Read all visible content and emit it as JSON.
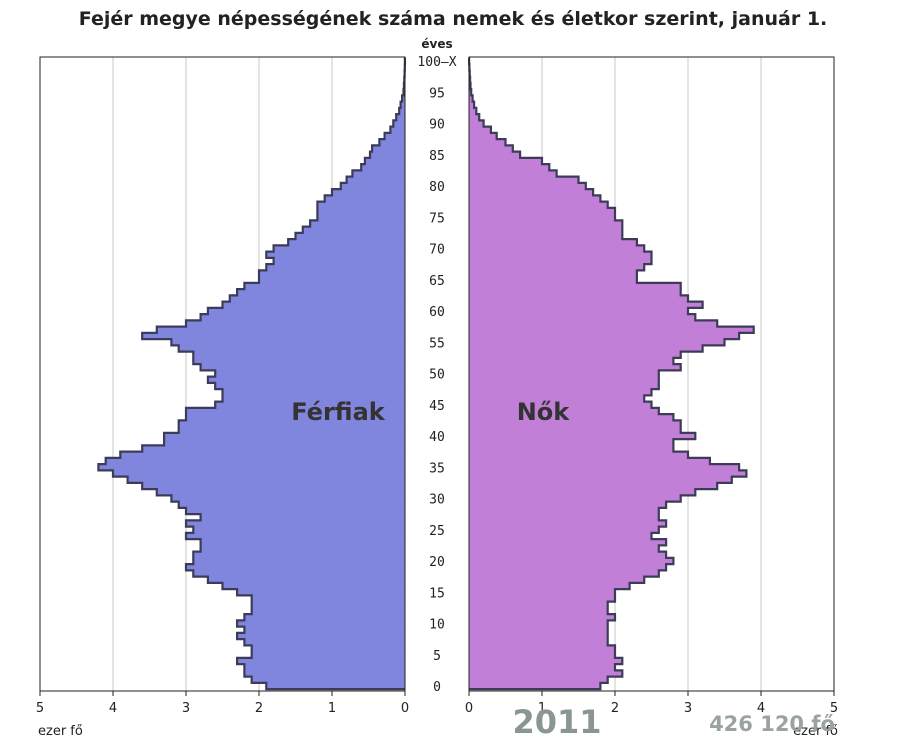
{
  "chart_data": {
    "type": "population-pyramid",
    "title": "Fejér megye népességének száma nemek és életkor szerint, január 1.",
    "age_axis_label": "éves",
    "age_ticks": [
      "0",
      "5",
      "10",
      "15",
      "20",
      "25",
      "30",
      "35",
      "40",
      "45",
      "50",
      "55",
      "60",
      "65",
      "70",
      "75",
      "80",
      "85",
      "90",
      "95",
      "100–X"
    ],
    "x_ticks_left": [
      "5",
      "4",
      "3",
      "2",
      "1",
      "0"
    ],
    "x_ticks_right": [
      "0",
      "1",
      "2",
      "3",
      "4",
      "5"
    ],
    "x_unit_left": "ezer fő",
    "x_unit_right": "ezer fő",
    "xlim": [
      0,
      5
    ],
    "ages": [
      0,
      1,
      2,
      3,
      4,
      5,
      6,
      7,
      8,
      9,
      10,
      11,
      12,
      13,
      14,
      15,
      16,
      17,
      18,
      19,
      20,
      21,
      22,
      23,
      24,
      25,
      26,
      27,
      28,
      29,
      30,
      31,
      32,
      33,
      34,
      35,
      36,
      37,
      38,
      39,
      40,
      41,
      42,
      43,
      44,
      45,
      46,
      47,
      48,
      49,
      50,
      51,
      52,
      53,
      54,
      55,
      56,
      57,
      58,
      59,
      60,
      61,
      62,
      63,
      64,
      65,
      66,
      67,
      68,
      69,
      70,
      71,
      72,
      73,
      74,
      75,
      76,
      77,
      78,
      79,
      80,
      81,
      82,
      83,
      84,
      85,
      86,
      87,
      88,
      89,
      90,
      91,
      92,
      93,
      94,
      95,
      96,
      97,
      98,
      99,
      100
    ],
    "series": [
      {
        "name": "Férfiak",
        "color": "#8085dd",
        "values": [
          1.9,
          2.1,
          2.2,
          2.2,
          2.3,
          2.1,
          2.1,
          2.2,
          2.3,
          2.2,
          2.3,
          2.2,
          2.1,
          2.1,
          2.1,
          2.3,
          2.5,
          2.7,
          2.9,
          3.0,
          2.9,
          2.9,
          2.8,
          2.8,
          3.0,
          2.9,
          3.0,
          2.8,
          3.0,
          3.1,
          3.2,
          3.4,
          3.6,
          3.8,
          4.0,
          4.2,
          4.1,
          3.9,
          3.6,
          3.3,
          3.3,
          3.1,
          3.1,
          3.0,
          3.0,
          2.6,
          2.5,
          2.5,
          2.6,
          2.7,
          2.6,
          2.8,
          2.9,
          2.9,
          3.1,
          3.2,
          3.6,
          3.4,
          3.0,
          2.8,
          2.7,
          2.5,
          2.4,
          2.3,
          2.2,
          2.0,
          2.0,
          1.9,
          1.8,
          1.9,
          1.8,
          1.6,
          1.5,
          1.4,
          1.3,
          1.2,
          1.2,
          1.2,
          1.1,
          1.0,
          0.88,
          0.8,
          0.72,
          0.6,
          0.55,
          0.48,
          0.45,
          0.35,
          0.28,
          0.2,
          0.16,
          0.12,
          0.08,
          0.06,
          0.04,
          0.02,
          0.015,
          0.01,
          0.005,
          0.003,
          0.002
        ]
      },
      {
        "name": "Nők",
        "color": "#c17fd8",
        "values": [
          1.8,
          1.9,
          2.1,
          2.0,
          2.1,
          2.0,
          2.0,
          1.9,
          1.9,
          1.9,
          1.9,
          2.0,
          1.9,
          1.9,
          2.0,
          2.0,
          2.2,
          2.4,
          2.6,
          2.7,
          2.8,
          2.7,
          2.6,
          2.7,
          2.5,
          2.6,
          2.7,
          2.6,
          2.6,
          2.7,
          2.9,
          3.1,
          3.4,
          3.6,
          3.8,
          3.7,
          3.3,
          3.0,
          2.8,
          2.8,
          3.1,
          2.9,
          2.9,
          2.8,
          2.6,
          2.5,
          2.4,
          2.5,
          2.6,
          2.6,
          2.6,
          2.9,
          2.8,
          2.9,
          3.2,
          3.5,
          3.7,
          3.9,
          3.4,
          3.1,
          3.0,
          3.2,
          3.0,
          2.9,
          2.9,
          2.3,
          2.3,
          2.4,
          2.5,
          2.5,
          2.4,
          2.3,
          2.1,
          2.1,
          2.1,
          2.0,
          2.0,
          1.9,
          1.8,
          1.7,
          1.6,
          1.5,
          1.2,
          1.1,
          1.0,
          0.7,
          0.6,
          0.5,
          0.38,
          0.3,
          0.2,
          0.14,
          0.1,
          0.07,
          0.05,
          0.03,
          0.02,
          0.015,
          0.01,
          0.005,
          0.002
        ]
      }
    ],
    "annotations": {
      "year": "2011",
      "total": "426 120 fő"
    }
  }
}
